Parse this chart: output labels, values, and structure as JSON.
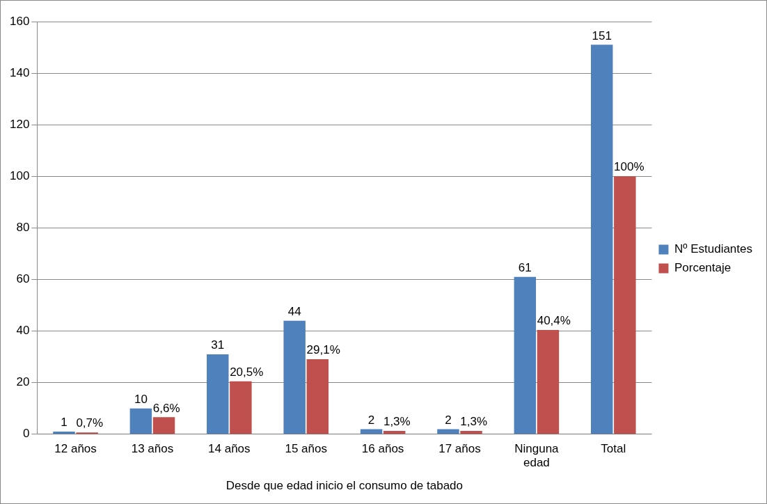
{
  "chart_data": {
    "type": "bar",
    "xlabel": "Desde que edad inicio el consumo de tabado",
    "categories": [
      "12 años",
      "13 años",
      "14 años",
      "15 años",
      "16 años",
      "17 años",
      "Ninguna edad",
      "Total"
    ],
    "series": [
      {
        "name": "Nº Estudiantes",
        "color": "#4f81bd",
        "values": [
          1,
          10,
          31,
          44,
          2,
          2,
          61,
          151
        ],
        "value_labels": [
          "1",
          "10",
          "31",
          "44",
          "2",
          "2",
          "61",
          "151"
        ]
      },
      {
        "name": "Porcentaje",
        "color": "#c0504d",
        "values": [
          0.7,
          6.6,
          20.5,
          29.1,
          1.3,
          1.3,
          40.4,
          100
        ],
        "value_labels": [
          "0,7%",
          "6,6%",
          "20,5%",
          "29,1%",
          "1,3%",
          "1,3%",
          "40,4%",
          "100%"
        ]
      }
    ],
    "ylim": [
      0,
      160
    ],
    "yticks": [
      0,
      20,
      40,
      60,
      80,
      100,
      120,
      140,
      160
    ],
    "grid": "y",
    "legend": "right"
  }
}
